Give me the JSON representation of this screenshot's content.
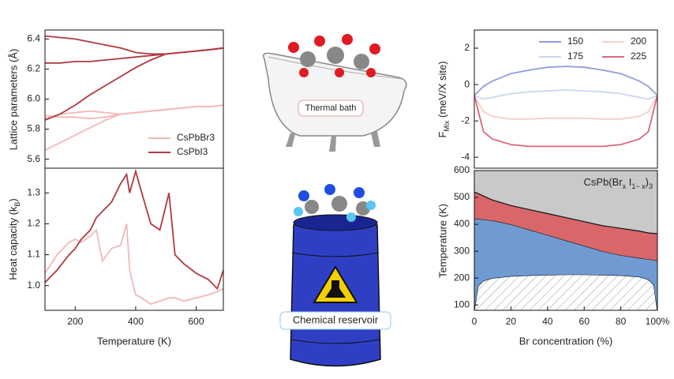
{
  "chart_data": [
    {
      "type": "line",
      "ylabel": "Lattice parameters (Å)",
      "xlim": [
        100,
        690
      ],
      "ylim": [
        5.54,
        6.46
      ],
      "yticks": [
        5.6,
        5.8,
        {
          "value": 6,
          "label": "6.0"
        },
        6.2,
        6.4
      ],
      "legend": "lower right",
      "x": [
        100,
        150,
        200,
        250,
        300,
        350,
        400,
        450,
        500,
        550,
        600,
        650,
        690
      ],
      "series": [
        {
          "name": "CsPbBr3",
          "color": "#f2b8b8",
          "values": [
            5.87,
            5.9,
            5.91,
            5.92,
            5.91,
            5.9,
            5.91,
            5.92,
            5.93,
            5.94,
            5.95,
            5.95,
            5.96
          ]
        },
        {
          "color": "#f2b8b8",
          "values": [
            5.89,
            5.88,
            5.88,
            5.87,
            5.88,
            5.9,
            5.91,
            5.92,
            5.93,
            5.94,
            5.95,
            5.95,
            5.96
          ]
        },
        {
          "color": "#f2b8b8",
          "values": [
            5.66,
            5.71,
            5.76,
            5.81,
            5.86,
            5.9,
            5.91,
            5.92,
            5.93,
            5.94,
            5.95,
            5.95,
            5.96
          ]
        },
        {
          "name": "CsPbI3",
          "color": "#b0393f",
          "values": [
            6.42,
            6.41,
            6.4,
            6.38,
            6.36,
            6.34,
            6.31,
            6.3,
            6.3,
            6.31,
            6.32,
            6.33,
            6.34
          ]
        },
        {
          "color": "#b0393f",
          "values": [
            6.24,
            6.24,
            6.25,
            6.25,
            6.26,
            6.27,
            6.28,
            6.29,
            6.3,
            6.31,
            6.32,
            6.33,
            6.34
          ]
        },
        {
          "color": "#b0393f",
          "values": [
            5.86,
            5.9,
            5.96,
            6.03,
            6.09,
            6.15,
            6.21,
            6.26,
            6.3,
            6.31,
            6.32,
            6.33,
            6.34
          ]
        }
      ]
    },
    {
      "type": "line",
      "ylabel": [
        "Heat capacity (k",
        "B",
        ")"
      ],
      "xlabel": "Temperature (K)",
      "xlim": [
        100,
        690
      ],
      "ylim": [
        0.92,
        1.38
      ],
      "xticks": [
        200,
        400,
        600
      ],
      "yticks": [
        {
          "value": 1,
          "label": "1.0"
        },
        1.1,
        1.2,
        1.3
      ],
      "x": [
        100,
        140,
        180,
        200,
        220,
        250,
        270,
        290,
        320,
        350,
        370,
        380,
        400,
        420,
        450,
        480,
        510,
        530,
        560,
        600,
        640,
        670,
        690
      ],
      "series": [
        {
          "color": "#f2b8b8",
          "values": [
            1.04,
            1.1,
            1.14,
            1.15,
            1.14,
            1.16,
            1.18,
            1.08,
            1.12,
            1.13,
            1.2,
            1.05,
            0.97,
            0.96,
            0.94,
            0.95,
            0.96,
            0.96,
            0.95,
            0.96,
            0.97,
            0.98,
            0.99
          ]
        },
        {
          "color": "#b0393f",
          "values": [
            1.01,
            1.05,
            1.1,
            1.12,
            1.15,
            1.18,
            1.22,
            1.24,
            1.27,
            1.33,
            1.36,
            1.3,
            1.37,
            1.3,
            1.2,
            1.18,
            1.3,
            1.1,
            1.07,
            1.04,
            1.02,
            0.99,
            1.05
          ]
        }
      ]
    },
    {
      "type": "line",
      "ylabel": [
        "F",
        "Mix",
        " (meV/X site)"
      ],
      "xlim": [
        0,
        100
      ],
      "ylim": [
        -4.6,
        3
      ],
      "yticks": [
        -4,
        -2,
        0,
        2
      ],
      "legend": "upper right",
      "x": [
        0,
        5,
        10,
        20,
        30,
        40,
        50,
        60,
        70,
        80,
        90,
        95,
        100
      ],
      "series": [
        {
          "name": "150",
          "color": "#8e9fd8",
          "values": [
            -0.6,
            -0.1,
            0.2,
            0.6,
            0.8,
            0.95,
            1.0,
            0.95,
            0.8,
            0.6,
            0.2,
            -0.1,
            -0.6
          ]
        },
        {
          "name": "175",
          "color": "#c9d7f1",
          "values": [
            -0.6,
            -0.8,
            -0.7,
            -0.5,
            -0.4,
            -0.35,
            -0.3,
            -0.35,
            -0.4,
            -0.5,
            -0.7,
            -0.8,
            -0.6
          ]
        },
        {
          "name": "200",
          "color": "#f5cfc3",
          "values": [
            -0.6,
            -1.5,
            -1.75,
            -1.9,
            -1.9,
            -1.85,
            -1.85,
            -1.85,
            -1.9,
            -1.9,
            -1.75,
            -1.5,
            -0.6
          ]
        },
        {
          "name": "225",
          "color": "#d9697b",
          "values": [
            -0.6,
            -2.6,
            -3.0,
            -3.3,
            -3.4,
            -3.4,
            -3.4,
            -3.4,
            -3.4,
            -3.3,
            -3.0,
            -2.6,
            -0.6
          ]
        }
      ]
    },
    {
      "type": "area",
      "title": [
        "CsPb(Br",
        "x",
        " I",
        "1− x",
        ")",
        "3"
      ],
      "ylabel": "Temperature (K)",
      "xlabel": "Br concentration (%)",
      "xlim": [
        0,
        100
      ],
      "ylim": [
        80,
        600
      ],
      "xticks": [
        0,
        20,
        40,
        60,
        80,
        {
          "value": 100,
          "label": "100%"
        }
      ],
      "yticks": [
        100,
        200,
        300,
        400,
        500,
        600
      ],
      "background": "#c9c9c9",
      "x": [
        0,
        2,
        5,
        10,
        20,
        30,
        40,
        50,
        60,
        70,
        80,
        90,
        95,
        98,
        100
      ],
      "series": [
        {
          "color": "#ffffff",
          "hatch": true,
          "values": [
            80,
            170,
            190,
            200,
            207,
            210,
            212,
            213,
            213,
            212,
            210,
            205,
            195,
            175,
            80
          ]
        },
        {
          "color": "#6f9bd2",
          "values": [
            420,
            420,
            418,
            414,
            400,
            380,
            360,
            340,
            320,
            300,
            285,
            275,
            270,
            268,
            265
          ]
        },
        {
          "color": "#d9676a",
          "values": [
            520,
            515,
            505,
            490,
            470,
            455,
            440,
            425,
            410,
            395,
            385,
            375,
            368,
            366,
            365
          ]
        }
      ]
    }
  ],
  "illustrations": {
    "bath_label": "Thermal bath",
    "reservoir_label": "Chemical reservoir"
  }
}
